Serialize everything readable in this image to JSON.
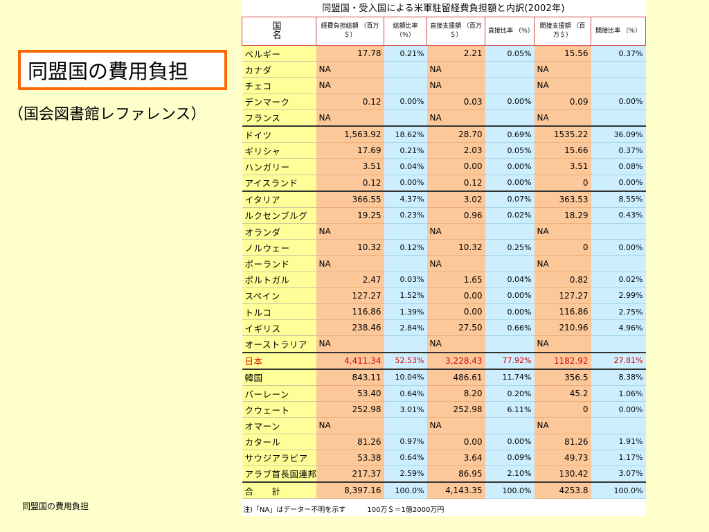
{
  "slide": {
    "title": "同盟国の費用負担",
    "subtitle": "（国会図書館レファレンス）",
    "footer": "同盟国の費用負担"
  },
  "table": {
    "title": "同盟国・受入国による米軍駐留経費負担額と内訳(2002年)",
    "headers": [
      "国　名",
      "経費負担総額 （百万＄）",
      "総額比率 （％）",
      "直接支援額 （百万＄）",
      "直接比率 （％）",
      "間接支援額 （百万＄）",
      "間接比率 （％）"
    ],
    "rows": [
      [
        "ベルギー",
        "17.78",
        "0.21%",
        "2.21",
        "0.05%",
        "15.56",
        "0.37%"
      ],
      [
        "カナダ",
        "NA",
        "",
        "NA",
        "",
        "NA",
        ""
      ],
      [
        "チェコ",
        "NA",
        "",
        "NA",
        "",
        "NA",
        ""
      ],
      [
        "デンマーク",
        "0.12",
        "0.00%",
        "0.03",
        "0.00%",
        "0.09",
        "0.00%"
      ],
      [
        "フランス",
        "NA",
        "",
        "NA",
        "",
        "NA",
        ""
      ],
      [
        "ドイツ",
        "1,563.92",
        "18.62%",
        "28.70",
        "0.69%",
        "1535.22",
        "36.09%"
      ],
      [
        "ギリシャ",
        "17.69",
        "0.21%",
        "2.03",
        "0.05%",
        "15.66",
        "0.37%"
      ],
      [
        "ハンガリー",
        "3.51",
        "0.04%",
        "0.00",
        "0.00%",
        "3.51",
        "0.08%"
      ],
      [
        "アイスランド",
        "0.12",
        "0.00%",
        "0.12",
        "0.00%",
        "0",
        "0.00%"
      ],
      [
        "イタリア",
        "366.55",
        "4.37%",
        "3.02",
        "0.07%",
        "363.53",
        "8.55%"
      ],
      [
        "ルクセンブルグ",
        "19.25",
        "0.23%",
        "0.96",
        "0.02%",
        "18.29",
        "0.43%"
      ],
      [
        "オランダ",
        "NA",
        "",
        "NA",
        "",
        "NA",
        ""
      ],
      [
        "ノルウェー",
        "10.32",
        "0.12%",
        "10.32",
        "0.25%",
        "0",
        "0.00%"
      ],
      [
        "ポーランド",
        "NA",
        "",
        "NA",
        "",
        "NA",
        ""
      ],
      [
        "ポルトガル",
        "2.47",
        "0.03%",
        "1.65",
        "0.04%",
        "0.82",
        "0.02%"
      ],
      [
        "スペイン",
        "127.27",
        "1.52%",
        "0.00",
        "0.00%",
        "127.27",
        "2.99%"
      ],
      [
        "トルコ",
        "116.86",
        "1.39%",
        "0.00",
        "0.00%",
        "116.86",
        "2.75%"
      ],
      [
        "イギリス",
        "238.46",
        "2.84%",
        "27.50",
        "0.66%",
        "210.96",
        "4.96%"
      ],
      [
        "オーストラリア",
        "NA",
        "",
        "NA",
        "",
        "NA",
        ""
      ],
      [
        "日本",
        "4,411.34",
        "52.53%",
        "3,228.43",
        "77.92%",
        "1182.92",
        "27.81%"
      ],
      [
        "韓国",
        "843.11",
        "10.04%",
        "486.61",
        "11.74%",
        "356.5",
        "8.38%"
      ],
      [
        "バーレーン",
        "53.40",
        "0.64%",
        "8.20",
        "0.20%",
        "45.2",
        "1.06%"
      ],
      [
        "クウェート",
        "252.98",
        "3.01%",
        "252.98",
        "6.11%",
        "0",
        "0.00%"
      ],
      [
        "オマーン",
        "NA",
        "",
        "NA",
        "",
        "NA",
        ""
      ],
      [
        "カタール",
        "81.26",
        "0.97%",
        "0.00",
        "0.00%",
        "81.26",
        "1.91%"
      ],
      [
        "サウジアラビア",
        "53.38",
        "0.64%",
        "3.64",
        "0.09%",
        "49.73",
        "1.17%"
      ],
      [
        "アラブ首長国連邦",
        "217.37",
        "2.59%",
        "86.95",
        "2.10%",
        "130.42",
        "3.07%"
      ],
      [
        "合　　計",
        "8,397.16",
        "100.0%",
        "4,143.35",
        "100.0%",
        "4253.8",
        "100.0%"
      ]
    ],
    "highlight_row": "日本",
    "total_row": "合　　計",
    "group_breaks_before": [
      "ドイツ",
      "イタリア",
      "日本",
      "合　　計"
    ],
    "notes": [
      "注)「NA」はデーター不明を示す",
      "100万＄＝1億2000万円"
    ],
    "colors": {
      "name_col": "#ffff99",
      "amount_col": "#fcc89a",
      "ratio_col": "#cceeff",
      "highlight_text": "#e00000"
    }
  }
}
